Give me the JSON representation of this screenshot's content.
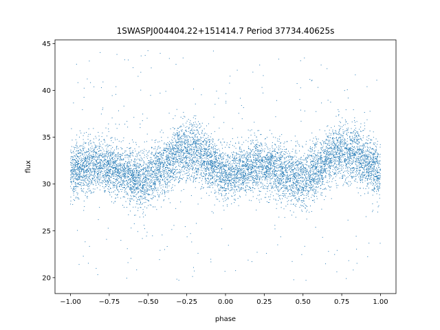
{
  "chart_data": {
    "type": "scatter",
    "title": "1SWASPJ004404.22+151414.7 Period 37734.40625s",
    "xlabel": "phase",
    "ylabel": "flux",
    "xlim": [
      -1.1,
      1.1
    ],
    "ylim": [
      18.3,
      45.4
    ],
    "xticks": [
      -1.0,
      -0.75,
      -0.5,
      -0.25,
      0.0,
      0.25,
      0.5,
      0.75,
      1.0
    ],
    "xtick_labels": [
      "−1.00",
      "−0.75",
      "−0.50",
      "−0.25",
      "0.00",
      "0.25",
      "0.50",
      "0.75",
      "1.00"
    ],
    "yticks": [
      20,
      25,
      30,
      35,
      40,
      45
    ],
    "ytick_labels": [
      "20",
      "25",
      "30",
      "35",
      "40",
      "45"
    ],
    "grid": false,
    "legend": "none",
    "marker_color": "#1f77b4",
    "series": [
      {
        "x": [
          -1.0,
          -0.9,
          -0.8,
          -0.7,
          -0.6,
          -0.5,
          -0.4,
          -0.3,
          -0.2,
          -0.1,
          0.0,
          0.1,
          0.2,
          0.3,
          0.4,
          0.5,
          0.6,
          0.7,
          0.8,
          0.9,
          1.0
        ],
        "y_center": [
          31.3,
          31.8,
          32.2,
          31.5,
          30.8,
          30.5,
          31.8,
          33.3,
          33.5,
          32.3,
          31.0,
          31.3,
          32.0,
          31.8,
          31.0,
          30.6,
          31.5,
          33.3,
          33.5,
          32.3,
          31.3
        ],
        "y_spread": [
          2.5,
          2.5,
          2.5,
          2.5,
          2.6,
          2.7,
          2.7,
          2.8,
          2.8,
          2.6,
          2.5,
          2.4,
          2.4,
          2.5,
          2.6,
          2.7,
          2.7,
          2.8,
          2.8,
          2.6,
          2.5
        ],
        "y_outlier_range": [
          19.7,
          44.4
        ]
      }
    ]
  }
}
